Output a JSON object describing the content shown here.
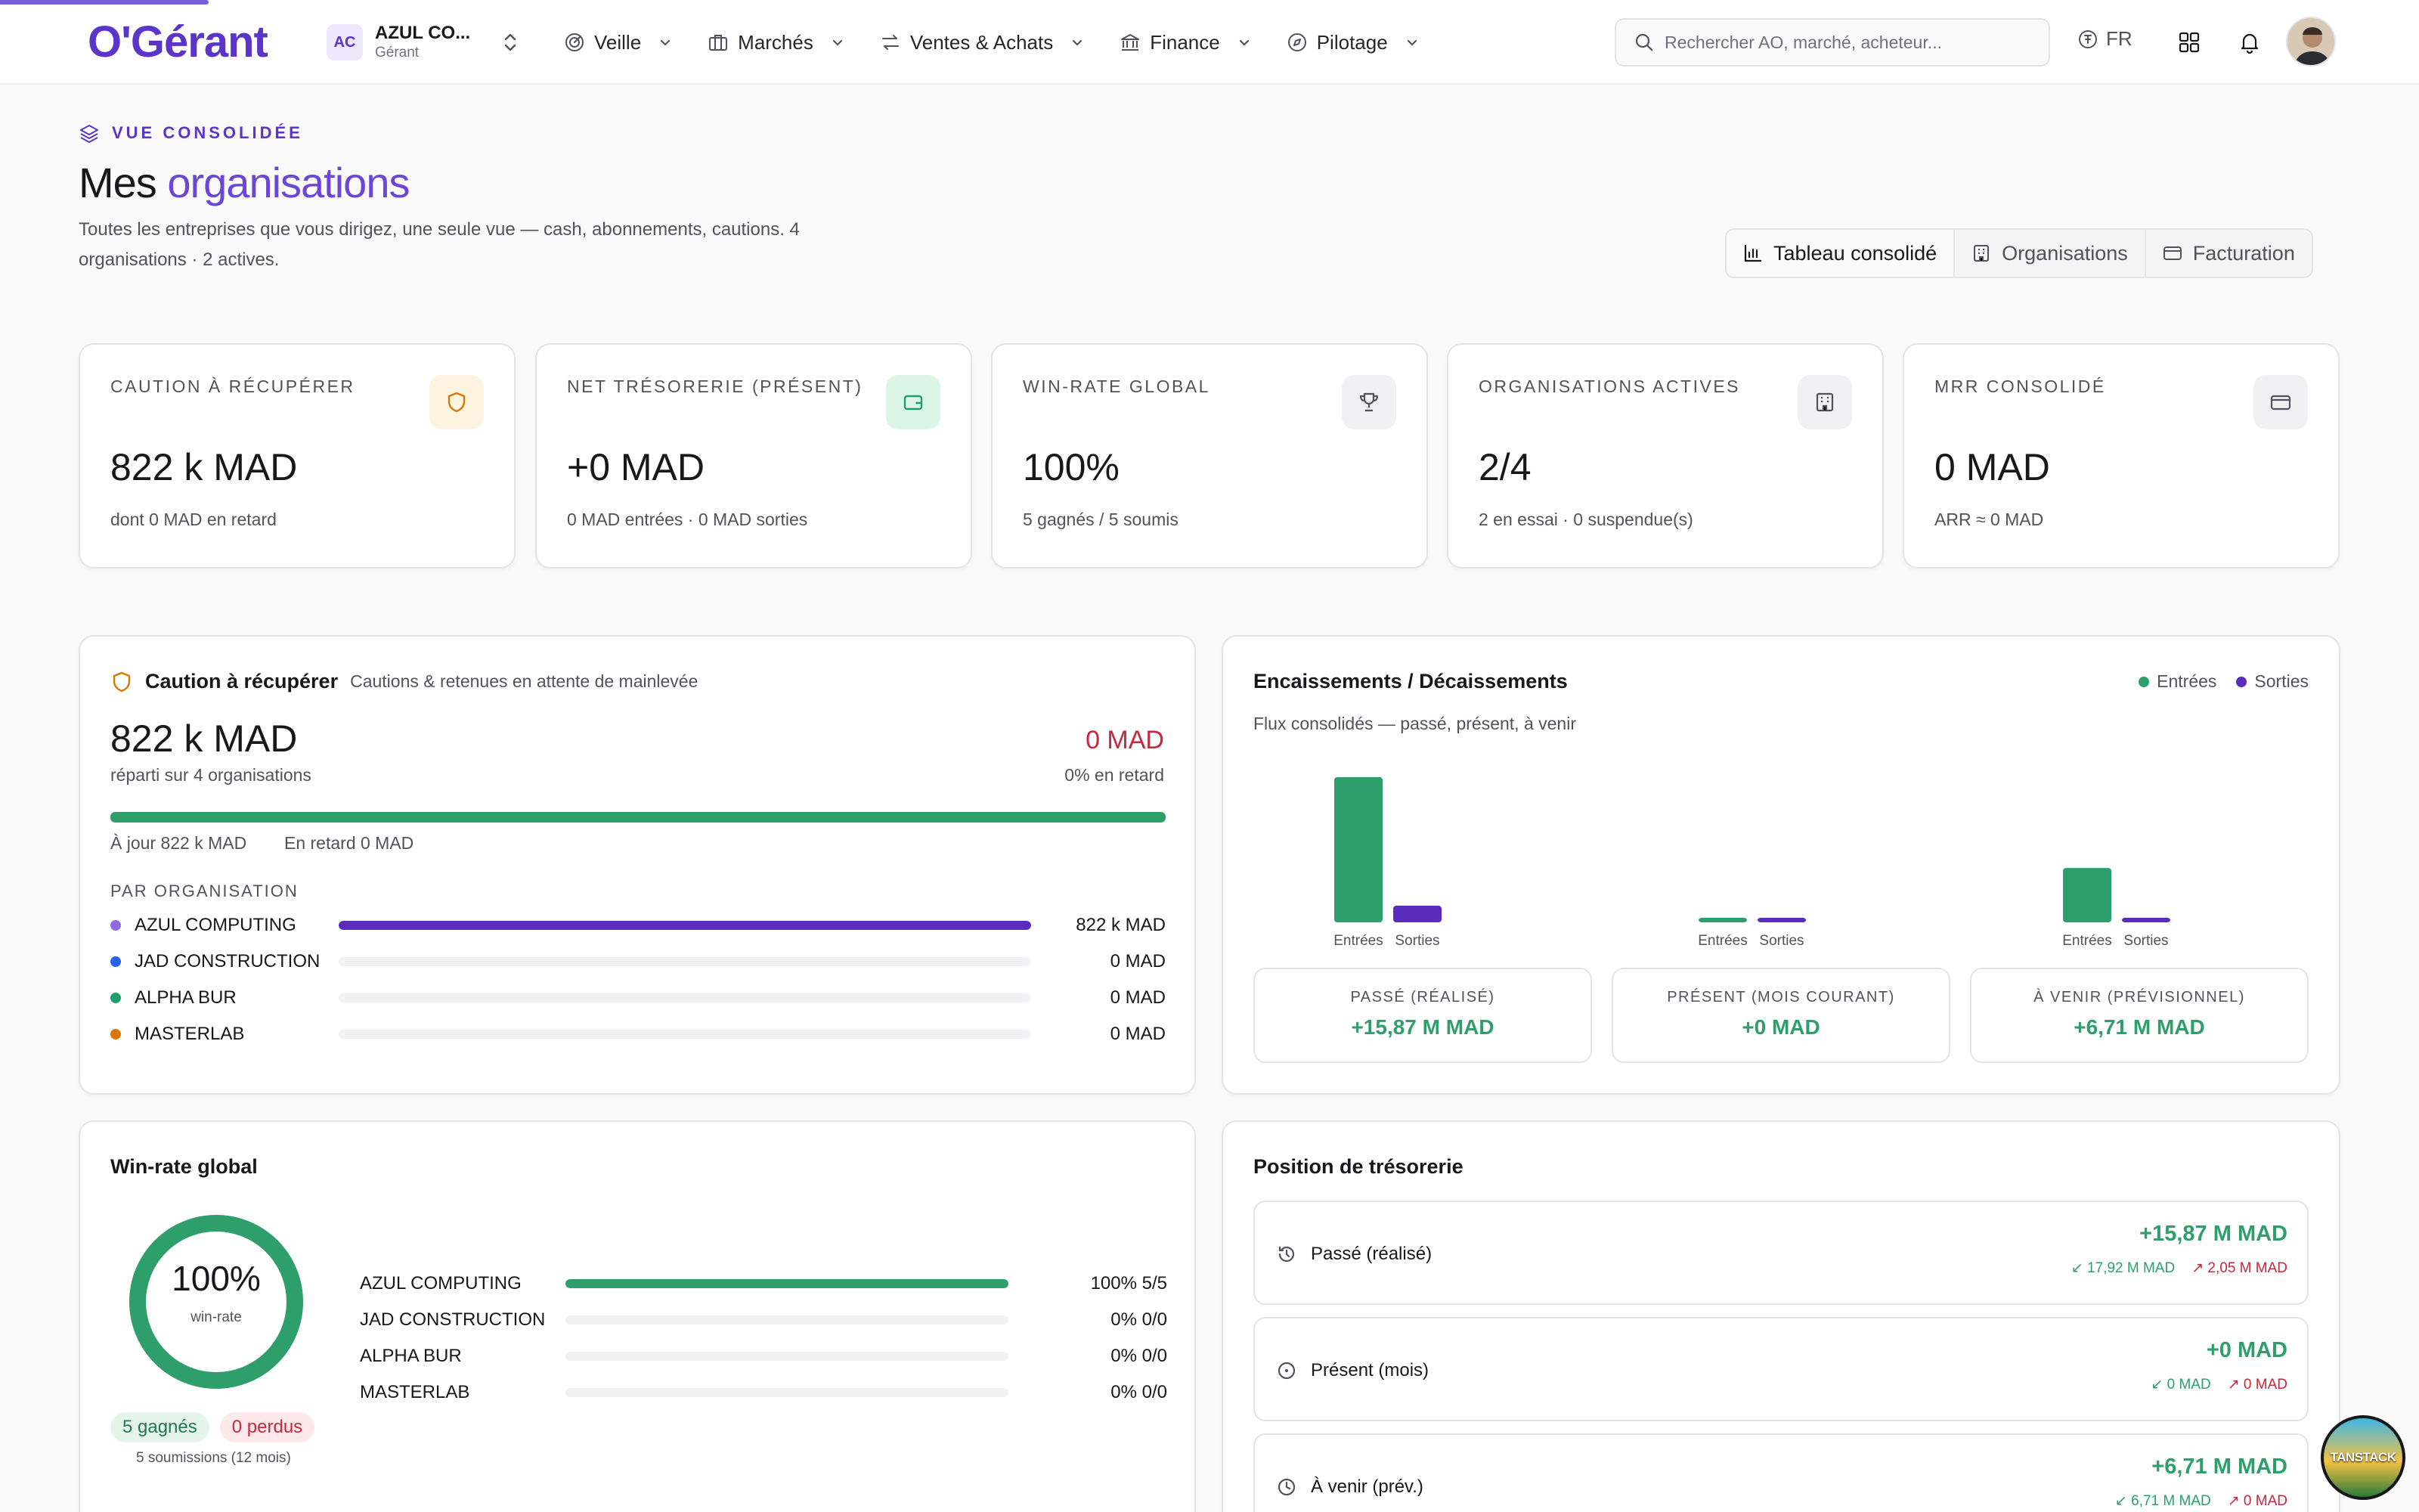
{
  "header": {
    "logo": "O'Gérant",
    "org": {
      "initials": "AC",
      "name": "AZUL CO...",
      "role": "Gérant"
    },
    "nav": [
      {
        "label": "Veille",
        "icon": "radar-icon"
      },
      {
        "label": "Marchés",
        "icon": "briefcase-icon"
      },
      {
        "label": "Ventes & Achats",
        "icon": "arrows-exchange-icon"
      },
      {
        "label": "Finance",
        "icon": "bank-icon"
      },
      {
        "label": "Pilotage",
        "icon": "compass-icon"
      }
    ],
    "search_placeholder": "Rechercher AO, marché, acheteur...",
    "lang": "FR"
  },
  "page": {
    "eyebrow": "VUE CONSOLIDÉE",
    "title_main": "Mes",
    "title_accent": "organisations",
    "subtitle": "Toutes les entreprises que vous dirigez, une seule vue — cash, abonnements, cautions. 4 organisations · 2 actives.",
    "tabs": [
      "Tableau consolidé",
      "Organisations",
      "Facturation"
    ],
    "active_tab": "Tableau consolidé"
  },
  "kpis": [
    {
      "label": "CAUTION À RÉCUPÉRER",
      "value": "822 k MAD",
      "sub": "dont 0 MAD en retard",
      "icon": "shield-icon",
      "color": "#d97706",
      "bg": "#fdf3e1"
    },
    {
      "label": "NET TRÉSORERIE (PRÉSENT)",
      "value": "+0 MAD",
      "sub": "0 MAD entrées · 0 MAD sorties",
      "icon": "wallet-icon",
      "color": "#1f9e6a",
      "bg": "#dcf5e9"
    },
    {
      "label": "WIN-RATE GLOBAL",
      "value": "100%",
      "sub": "5 gagnés / 5 soumis",
      "icon": "trophy-icon",
      "color": "#52525b",
      "bg": "#f1f1f3"
    },
    {
      "label": "ORGANISATIONS ACTIVES",
      "value": "2/4",
      "sub": "2 en essai · 0 suspendue(s)",
      "icon": "building-icon",
      "color": "#52525b",
      "bg": "#f1f1f3"
    },
    {
      "label": "MRR CONSOLIDÉ",
      "value": "0 MAD",
      "sub": "ARR ≈ 0 MAD",
      "icon": "credit-card-icon",
      "color": "#52525b",
      "bg": "#f1f1f3"
    }
  ],
  "caution": {
    "title": "Caution à récupérer",
    "subtitle": "Cautions & retenues en attente de mainlevée",
    "total": "822 k MAD",
    "total_sub": "réparti sur 4 organisations",
    "late": "0 MAD",
    "late_sub": "0% en retard",
    "ontime_pct": 100,
    "ontime_label": "À jour 822 k MAD",
    "late_label": "En retard 0 MAD",
    "by_org_title": "PAR ORGANISATION",
    "orgs": [
      {
        "name": "AZUL COMPUTING",
        "value": "822 k MAD",
        "pct": 100,
        "color": "#8b6be0"
      },
      {
        "name": "JAD CONSTRUCTION",
        "value": "0 MAD",
        "pct": 0,
        "color": "#2563eb"
      },
      {
        "name": "ALPHA BUR",
        "value": "0 MAD",
        "pct": 0,
        "color": "#1f9e6a"
      },
      {
        "name": "MASTERLAB",
        "value": "0 MAD",
        "pct": 0,
        "color": "#d97706"
      }
    ]
  },
  "flows": {
    "title": "Encaissements / Décaissements",
    "subtitle": "Flux consolidés — passé, présent, à venir",
    "legend_in": "Entrées",
    "legend_out": "Sorties",
    "color_in": "#2e9e6b",
    "color_out": "#5b2bbd",
    "boxes": [
      {
        "label": "PASSÉ (RÉALISÉ)",
        "value": "+15,87 M MAD"
      },
      {
        "label": "PRÉSENT (MOIS COURANT)",
        "value": "+0 MAD"
      },
      {
        "label": "À VENIR (PRÉVISIONNEL)",
        "value": "+6,71 M MAD"
      }
    ]
  },
  "chart_data": {
    "type": "bar",
    "title": "Encaissements / Décaissements",
    "categories": [
      "Passé",
      "Présent",
      "À venir"
    ],
    "series": [
      {
        "name": "Entrées",
        "values": [
          17.92,
          0,
          6.71
        ]
      },
      {
        "name": "Sorties",
        "values": [
          2.05,
          0,
          0
        ]
      }
    ],
    "x_tick_labels": [
      "Entrées",
      "Sorties"
    ],
    "unit": "M MAD",
    "ylim": [
      0,
      17.92
    ],
    "legend": "top-right",
    "grid": false
  },
  "winrate": {
    "title": "Win-rate global",
    "value": "100%",
    "value_label": "win-rate",
    "pct": 100,
    "won": "5 gagnés",
    "lost": "0 perdus",
    "submissions": "5 soumissions (12 mois)",
    "orgs": [
      {
        "name": "AZUL COMPUTING",
        "value": "100% 5/5",
        "pct": 100
      },
      {
        "name": "JAD CONSTRUCTION",
        "value": "0% 0/0",
        "pct": 0
      },
      {
        "name": "ALPHA BUR",
        "value": "0% 0/0",
        "pct": 0
      },
      {
        "name": "MASTERLAB",
        "value": "0% 0/0",
        "pct": 0
      }
    ]
  },
  "treasury": {
    "title": "Position de trésorerie",
    "rows": [
      {
        "label": "Passé (réalisé)",
        "icon": "history-icon",
        "value": "+15,87 M MAD",
        "in": "17,92 M MAD",
        "out": "2,05 M MAD"
      },
      {
        "label": "Présent (mois)",
        "icon": "clock-icon",
        "value": "+0 MAD",
        "in": "0 MAD",
        "out": "0 MAD"
      },
      {
        "label": "À venir (prév.)",
        "icon": "future-icon",
        "value": "+6,71 M MAD",
        "in": "6,71 M MAD",
        "out": "0 MAD"
      }
    ]
  },
  "badge": "TANSTACK"
}
